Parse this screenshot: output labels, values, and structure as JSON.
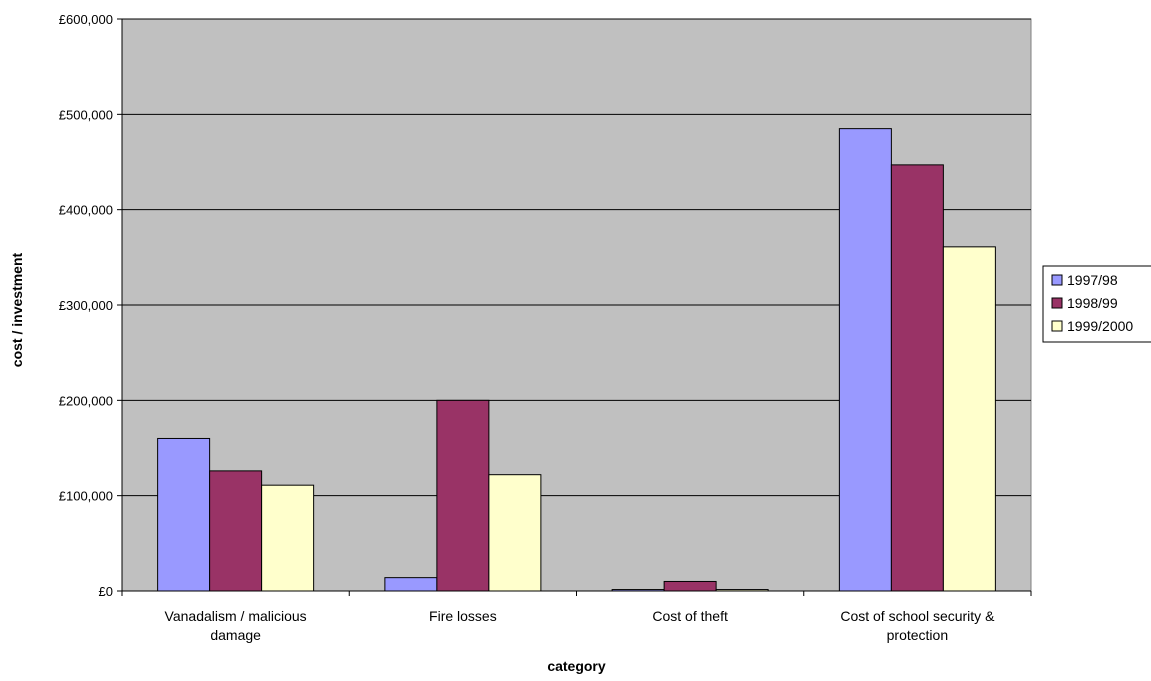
{
  "chart_data": {
    "type": "bar",
    "title": "",
    "xlabel": "category",
    "ylabel": "cost / investment",
    "categories": [
      [
        "Vanadalism / malicious",
        "damage"
      ],
      [
        "Fire losses"
      ],
      [
        "Cost of theft"
      ],
      [
        "Cost of school security &",
        "protection"
      ]
    ],
    "series": [
      {
        "name": "1997/98",
        "color": "#9999ff",
        "values": [
          160000,
          14000,
          1500,
          485000
        ]
      },
      {
        "name": "1998/99",
        "color": "#993366",
        "values": [
          126000,
          200000,
          10000,
          447000
        ]
      },
      {
        "name": "1999/2000",
        "color": "#ffffcc",
        "values": [
          111000,
          122000,
          1500,
          361000
        ]
      }
    ],
    "ylim": [
      0,
      600000
    ],
    "yticks": [
      0,
      100000,
      200000,
      300000,
      400000,
      500000,
      600000
    ],
    "ytick_labels": [
      "£0",
      "£100,000",
      "£200,000",
      "£300,000",
      "£400,000",
      "£500,000",
      "£600,000"
    ],
    "grid": true,
    "plot_background": "#c0c0c0",
    "legend_position": "right"
  }
}
